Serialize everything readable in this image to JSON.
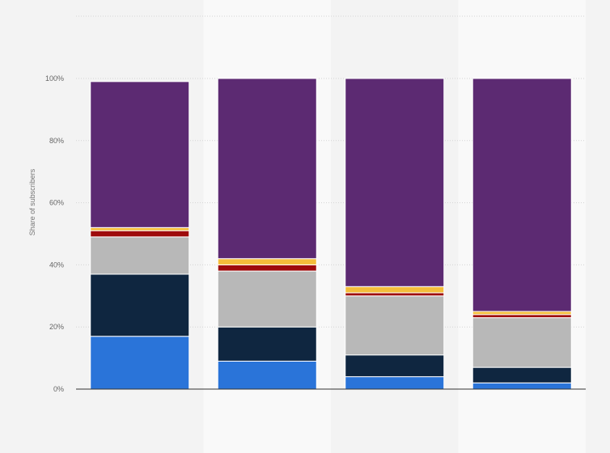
{
  "chart_data": {
    "type": "bar",
    "stacked": true,
    "categories": [
      "",
      "",
      "",
      ""
    ],
    "ylabel": "Share of subscribers",
    "ylim": [
      0,
      100
    ],
    "yticks": [
      0,
      20,
      40,
      60,
      80,
      100
    ],
    "ytick_suffix": "%",
    "grid": true,
    "series": [
      {
        "color": "#2a74d9",
        "values": [
          17,
          9,
          4,
          2
        ]
      },
      {
        "color": "#0f2640",
        "values": [
          20,
          11,
          7,
          5
        ]
      },
      {
        "color": "#b8b8b8",
        "values": [
          12,
          18,
          19,
          16
        ]
      },
      {
        "color": "#9e0b0b",
        "values": [
          2,
          2,
          1,
          1
        ]
      },
      {
        "color": "#f4bd3a",
        "values": [
          1,
          2,
          2,
          1
        ]
      },
      {
        "color": "#5c2a72",
        "values": [
          47,
          58,
          67,
          75
        ]
      }
    ]
  }
}
